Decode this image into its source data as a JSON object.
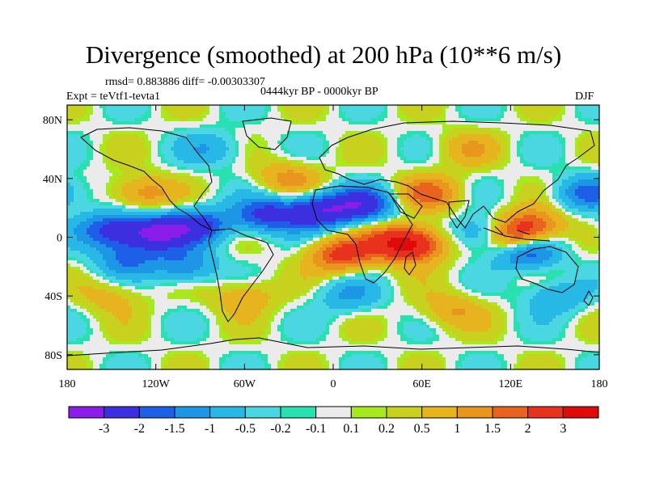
{
  "header": {
    "title": "Divergence (smoothed) at 200 hPa (10**6 m/s)",
    "stats": "rmsd= 0.883886 diff= -0.00303307",
    "experiment": "Expt = teVtf1-tevta1",
    "period": "0444kyr BP - 0000kyr BP",
    "season": "DJF"
  },
  "map": {
    "projection": "cylindrical-equidistant",
    "lon_range": [
      -180,
      180
    ],
    "lat_range": [
      -90,
      90
    ],
    "x_tick_labels": [
      "180",
      "120W",
      "60W",
      "0",
      "60E",
      "120E",
      "180"
    ],
    "x_tick_values": [
      -180,
      -120,
      -60,
      0,
      60,
      120,
      180
    ],
    "y_tick_labels": [
      "80N",
      "40N",
      "0",
      "40S",
      "80S"
    ],
    "y_tick_values": [
      80,
      40,
      0,
      -40,
      -80
    ]
  },
  "colorbar": {
    "labels": [
      "-3",
      "-2",
      "-1.5",
      "-1",
      "-0.5",
      "-0.2",
      "-0.1",
      "0.1",
      "0.2",
      "0.5",
      "1",
      "1.5",
      "2",
      "3"
    ],
    "colors": [
      "#8a1ee8",
      "#3b2fe0",
      "#1e5fe8",
      "#1e96e6",
      "#28b8e6",
      "#4ad7e2",
      "#28e0b0",
      "#ebebeb",
      "#a8e81e",
      "#c8d21e",
      "#e6b41e",
      "#e8961e",
      "#e8641e",
      "#e8321e",
      "#e00a0a"
    ]
  },
  "chart_data": {
    "type": "heatmap",
    "title": "Divergence (smoothed) at 200 hPa (10**6 m/s)",
    "xlabel": "",
    "ylabel": "",
    "x_range": [
      -180,
      180
    ],
    "y_range": [
      -90,
      90
    ],
    "levels": [
      -3,
      -2,
      -1.5,
      -1,
      -0.5,
      -0.2,
      -0.1,
      0.1,
      0.2,
      0.5,
      1,
      1.5,
      2,
      3
    ],
    "blobs": [
      {
        "lon": -150,
        "lat": 5,
        "amp": -2.2
      },
      {
        "lon": -120,
        "lat": 3,
        "amp": -2.8
      },
      {
        "lon": -90,
        "lat": 8,
        "amp": -2.0
      },
      {
        "lon": -45,
        "lat": 15,
        "amp": -2.2
      },
      {
        "lon": -10,
        "lat": 18,
        "amp": -2.6
      },
      {
        "lon": 20,
        "lat": 22,
        "amp": -2.3
      },
      {
        "lon": 105,
        "lat": 2,
        "amp": -2.5
      },
      {
        "lon": 130,
        "lat": -10,
        "amp": -2.2
      },
      {
        "lon": 118,
        "lat": 0,
        "amp": 3.0
      },
      {
        "lon": 135,
        "lat": 8,
        "amp": 1.8
      },
      {
        "lon": 55,
        "lat": -5,
        "amp": 2.5
      },
      {
        "lon": 40,
        "lat": -3,
        "amp": 1.6
      },
      {
        "lon": 5,
        "lat": -12,
        "amp": 2.2
      },
      {
        "lon": 65,
        "lat": 30,
        "amp": 1.6
      },
      {
        "lon": -140,
        "lat": -15,
        "amp": -1.4
      },
      {
        "lon": -100,
        "lat": -20,
        "amp": -1.5
      },
      {
        "lon": -130,
        "lat": 30,
        "amp": 1.4
      },
      {
        "lon": -30,
        "lat": 40,
        "amp": 1.2
      },
      {
        "lon": 170,
        "lat": 30,
        "amp": -1.5
      },
      {
        "lon": 80,
        "lat": -50,
        "amp": 1.0
      },
      {
        "lon": -60,
        "lat": -40,
        "amp": 1.0
      },
      {
        "lon": -150,
        "lat": -40,
        "amp": 0.8
      },
      {
        "lon": 90,
        "lat": 60,
        "amp": 0.8
      },
      {
        "lon": -80,
        "lat": 60,
        "amp": -0.9
      },
      {
        "lon": 10,
        "lat": -40,
        "amp": -1.0
      },
      {
        "lon": 150,
        "lat": -40,
        "amp": -1.1
      }
    ]
  }
}
